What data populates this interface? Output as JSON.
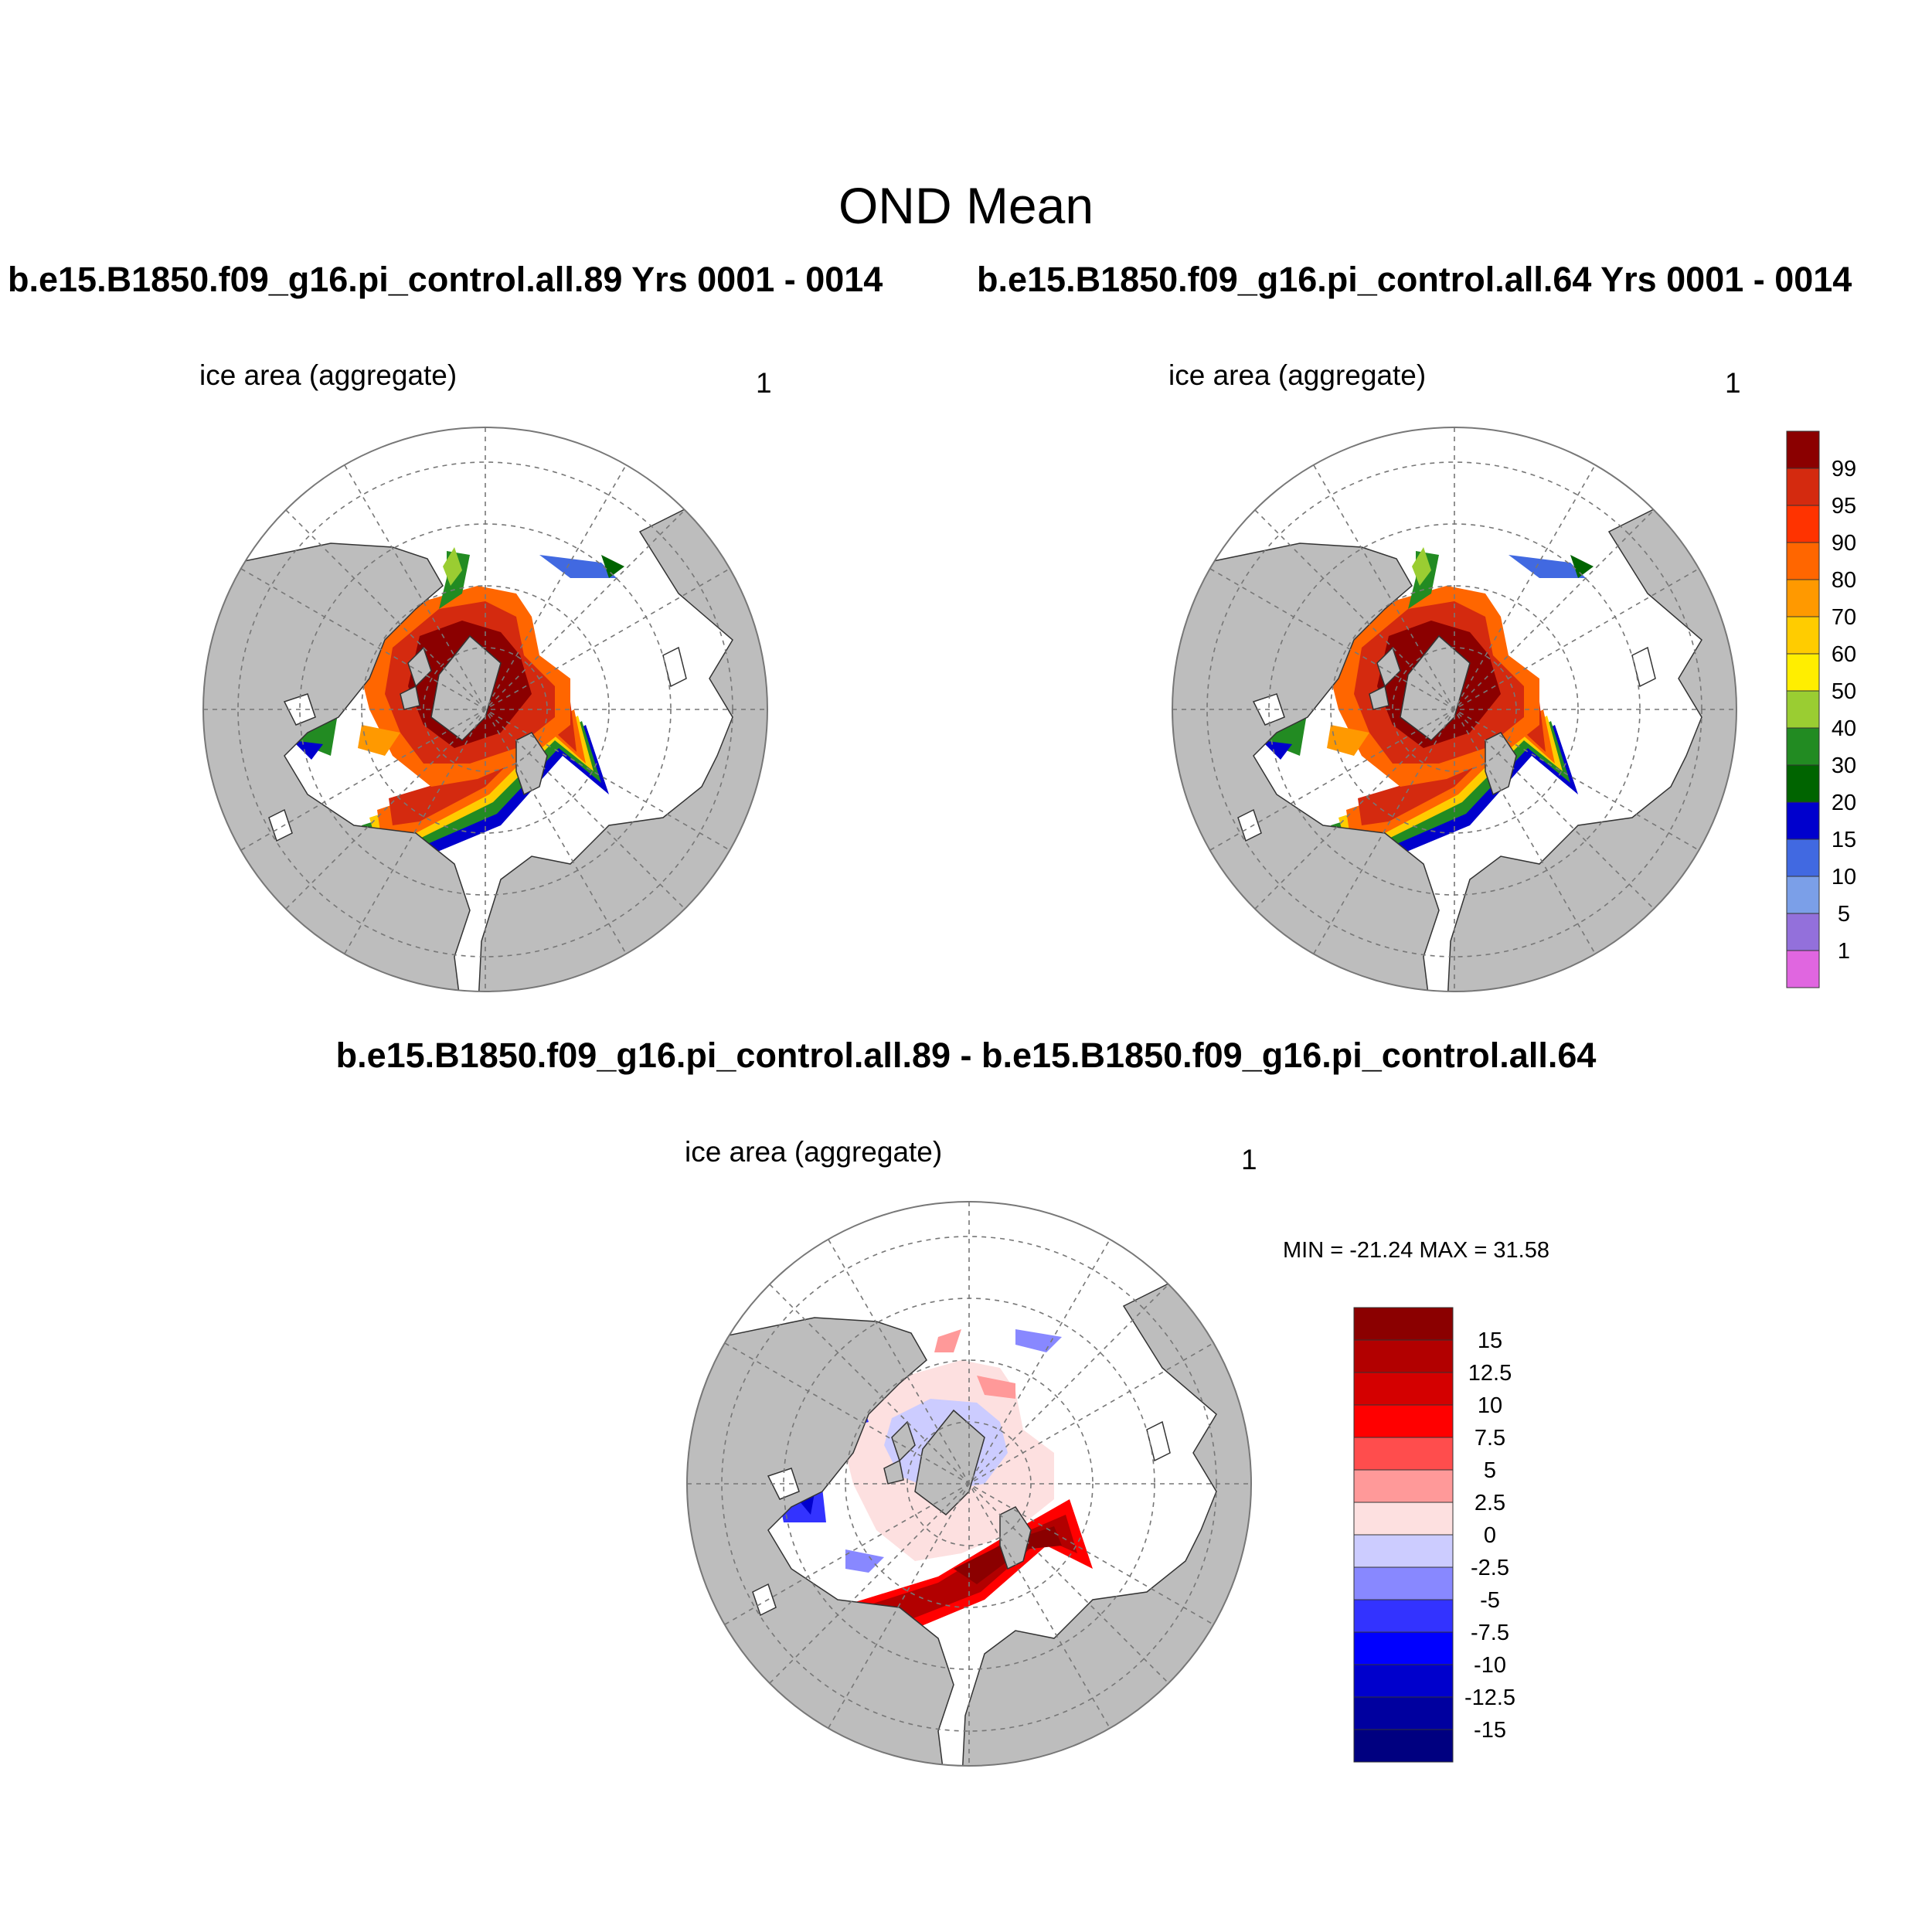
{
  "title": "OND Mean",
  "panels": [
    {
      "title": "b.e15.B1850.f09_g16.pi_control.all.89  Yrs 0001 - 0014",
      "variable": "ice area  (aggregate)",
      "level": "1"
    },
    {
      "title": "b.e15.B1850.f09_g16.pi_control.all.64  Yrs 0001 - 0014",
      "variable": "ice area  (aggregate)",
      "level": "1"
    },
    {
      "title": "b.e15.B1850.f09_g16.pi_control.all.89 - b.e15.B1850.f09_g16.pi_control.all.64",
      "variable": "ice area  (aggregate)",
      "level": "1",
      "stats": "MIN = -21.24 MAX =  31.58"
    }
  ],
  "colorbar_top": {
    "labels": [
      "99",
      "95",
      "90",
      "80",
      "70",
      "60",
      "50",
      "40",
      "30",
      "20",
      "15",
      "10",
      "5",
      "1"
    ],
    "colors": [
      "#8b0000",
      "#d42a0f",
      "#ff3300",
      "#ff6600",
      "#ff9900",
      "#ffcc00",
      "#ffee00",
      "#9acd32",
      "#228b22",
      "#006400",
      "#0000cd",
      "#4169e1",
      "#7b9fe8",
      "#9370db",
      "#e066e0"
    ]
  },
  "colorbar_diff": {
    "labels": [
      "15",
      "12.5",
      "10",
      "7.5",
      "5",
      "2.5",
      "0",
      "-2.5",
      "-5",
      "-7.5",
      "-10",
      "-12.5",
      "-15"
    ],
    "colors": [
      "#8b0000",
      "#b20000",
      "#d40000",
      "#ff0000",
      "#ff4d4d",
      "#ff9999",
      "#fde0e0",
      "#ccccff",
      "#8888ff",
      "#3333ff",
      "#0000ff",
      "#0000cc",
      "#00009f",
      "#000080"
    ]
  }
}
